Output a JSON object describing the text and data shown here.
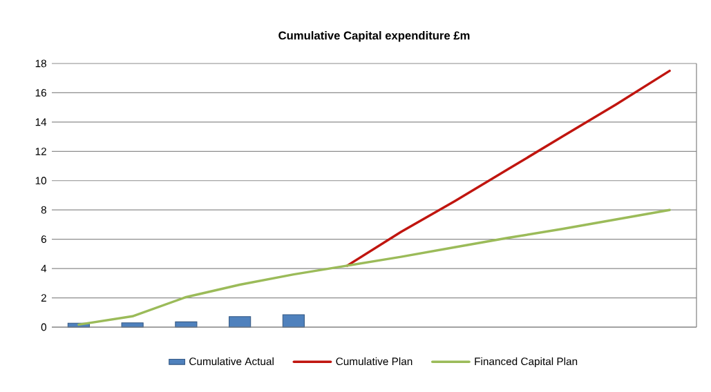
{
  "chart_data": {
    "type": "line",
    "title": "Cumulative Capital expenditure £m",
    "categories": [
      null,
      null,
      null,
      null,
      null,
      null,
      null,
      null,
      null,
      null,
      null,
      null
    ],
    "series": [
      {
        "name": "Cumulative Actual",
        "type": "bar",
        "color": "#4f81bd",
        "values": [
          0.27,
          0.29,
          0.36,
          0.72,
          0.85,
          null,
          null,
          null,
          null,
          null,
          null,
          null
        ]
      },
      {
        "name": "Cumulative Plan",
        "color": "#c0150f",
        "values": [
          null,
          null,
          null,
          null,
          null,
          4.2,
          6.5,
          8.6,
          10.8,
          13.0,
          15.2,
          17.5
        ]
      },
      {
        "name": "Financed Capital Plan",
        "color": "#9bbb59",
        "values": [
          0.17,
          0.74,
          2.05,
          2.9,
          3.6,
          4.2,
          4.8,
          5.45,
          6.1,
          6.7,
          7.35,
          8.0
        ]
      }
    ],
    "ylim": [
      0,
      18
    ],
    "yticks": [
      0,
      2,
      4,
      6,
      8,
      10,
      12,
      14,
      16,
      18
    ],
    "grid": "y",
    "legend": "bottom",
    "tick_labels": "y",
    "marker": "none",
    "line_style": "solid"
  }
}
